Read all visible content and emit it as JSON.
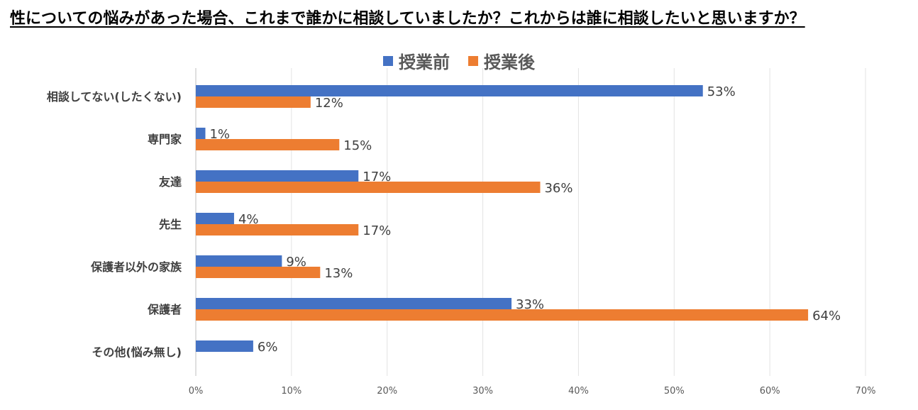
{
  "title": "性についての悩みがあった場合、これまで誰かに相談していましたか？これからは誰に相談したいと思いますか？",
  "legend": [
    {
      "label": "授業前",
      "color": "#4472C4"
    },
    {
      "label": "授業後",
      "color": "#ED7D31"
    }
  ],
  "chart_data": {
    "type": "bar",
    "orientation": "horizontal",
    "categories": [
      "相談してない(したくない)",
      "専門家",
      "友達",
      "先生",
      "保護者以外の家族",
      "保護者",
      "その他(悩み無し)"
    ],
    "series": [
      {
        "name": "授業前",
        "color": "#4472C4",
        "values": [
          53,
          1,
          17,
          4,
          9,
          33,
          6
        ],
        "labels": [
          "53%",
          "1%",
          "17%",
          "4%",
          "9%",
          "33%",
          "6%"
        ]
      },
      {
        "name": "授業後",
        "color": "#ED7D31",
        "values": [
          12,
          15,
          36,
          17,
          13,
          64,
          null
        ],
        "labels": [
          "12%",
          "15%",
          "36%",
          "17%",
          "13%",
          "64%",
          null
        ]
      }
    ],
    "xlim": [
      0,
      70
    ],
    "xticks": [
      0,
      10,
      20,
      30,
      40,
      50,
      60,
      70
    ],
    "xtick_labels": [
      "0%",
      "10%",
      "20%",
      "30%",
      "40%",
      "50%",
      "60%",
      "70%"
    ],
    "grid": true,
    "legend_position": "top"
  }
}
